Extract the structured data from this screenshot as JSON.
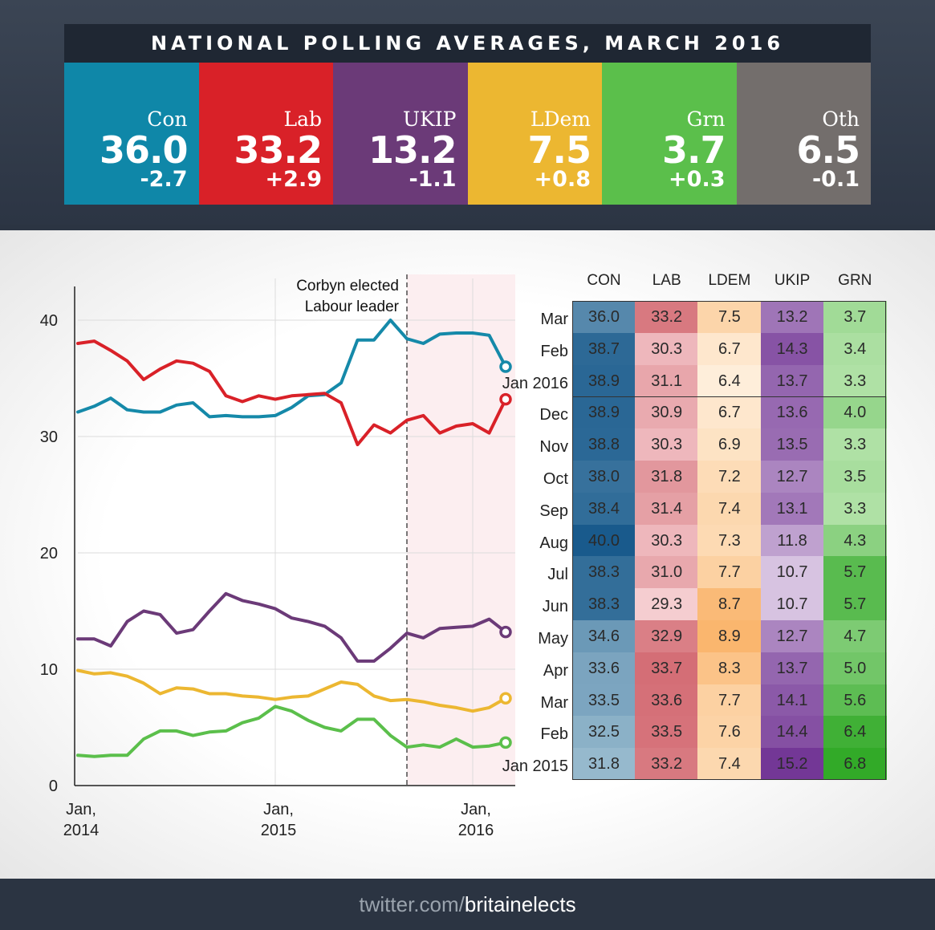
{
  "title": "NATIONAL POLLING AVERAGES, MARCH 2016",
  "cards": [
    {
      "name": "Con",
      "value": "36.0",
      "change": "-2.7",
      "color": "#0f87a8"
    },
    {
      "name": "Lab",
      "value": "33.2",
      "change": "+2.9",
      "color": "#d92128"
    },
    {
      "name": "UKIP",
      "value": "13.2",
      "change": "-1.1",
      "color": "#6b3a78"
    },
    {
      "name": "LDem",
      "value": "7.5",
      "change": "+0.8",
      "color": "#ecb731"
    },
    {
      "name": "Grn",
      "value": "3.7",
      "change": "+0.3",
      "color": "#5bbf4b"
    },
    {
      "name": "Oth",
      "value": "6.5",
      "change": "-0.1",
      "color": "#736e6c"
    }
  ],
  "chart_data": [
    {
      "type": "line",
      "x_ticks": [
        "Jan, 2014",
        "Jan, 2015",
        "Jan, 2016"
      ],
      "ylim": [
        0,
        42
      ],
      "y_ticks": [
        0,
        10,
        20,
        30,
        40
      ],
      "x_months_start": "2014-01",
      "grid": true,
      "annotation": {
        "text_line1": "Corbyn elected",
        "text_line2": "Labour leader",
        "x": "2015-09"
      },
      "series": [
        {
          "name": "",
          "color": "#1589a9",
          "values": [
            32.1,
            32.6,
            33.3,
            32.3,
            32.1,
            32.1,
            32.7,
            32.9,
            31.7,
            31.8,
            31.7,
            31.7,
            31.8,
            32.5,
            33.5,
            33.6,
            34.6,
            38.3,
            38.3,
            40.0,
            38.4,
            38.0,
            38.8,
            38.9,
            38.9,
            38.7,
            36.0
          ]
        },
        {
          "name": "",
          "color": "#d92128",
          "values": [
            38.0,
            38.2,
            37.4,
            36.5,
            34.9,
            35.8,
            36.5,
            36.3,
            35.6,
            33.5,
            33.0,
            33.5,
            33.2,
            33.5,
            33.6,
            33.7,
            32.9,
            29.3,
            31.0,
            30.3,
            31.4,
            31.8,
            30.3,
            30.9,
            31.1,
            30.3,
            33.2
          ]
        },
        {
          "name": "",
          "color": "#6b3a78",
          "values": [
            12.6,
            12.6,
            12.0,
            14.1,
            15.0,
            14.7,
            13.1,
            13.4,
            15.0,
            16.5,
            15.9,
            15.6,
            15.2,
            14.4,
            14.1,
            13.7,
            12.7,
            10.7,
            10.7,
            11.8,
            13.1,
            12.7,
            13.5,
            13.6,
            13.7,
            14.3,
            13.2
          ]
        },
        {
          "name": "",
          "color": "#ecb731",
          "values": [
            9.9,
            9.6,
            9.7,
            9.4,
            8.8,
            7.9,
            8.4,
            8.3,
            7.9,
            7.9,
            7.7,
            7.6,
            7.4,
            7.6,
            7.7,
            8.3,
            8.9,
            8.7,
            7.7,
            7.3,
            7.4,
            7.2,
            6.9,
            6.7,
            6.4,
            6.7,
            7.5
          ]
        },
        {
          "name": "",
          "color": "#5bbf4b",
          "values": [
            2.6,
            2.5,
            2.6,
            2.6,
            4.0,
            4.7,
            4.7,
            4.3,
            4.6,
            4.7,
            5.4,
            5.8,
            6.8,
            6.4,
            5.6,
            5.0,
            4.7,
            5.7,
            5.7,
            4.3,
            3.3,
            3.5,
            3.3,
            4.0,
            3.3,
            3.4,
            3.7
          ]
        }
      ]
    },
    {
      "type": "table",
      "columns": [
        "CON",
        "LAB",
        "LDEM",
        "UKIP",
        "GRN"
      ],
      "rows": [
        {
          "label": "Mar",
          "values": [
            "36.0",
            "33.2",
            "7.5",
            "13.2",
            "3.7"
          ]
        },
        {
          "label": "Feb",
          "values": [
            "38.7",
            "30.3",
            "6.7",
            "14.3",
            "3.4"
          ]
        },
        {
          "label": "Jan 2016",
          "values": [
            "38.9",
            "31.1",
            "6.4",
            "13.7",
            "3.3"
          ]
        },
        {
          "label": "Dec",
          "values": [
            "38.9",
            "30.9",
            "6.7",
            "13.6",
            "4.0"
          ]
        },
        {
          "label": "Nov",
          "values": [
            "38.8",
            "30.3",
            "6.9",
            "13.5",
            "3.3"
          ]
        },
        {
          "label": "Oct",
          "values": [
            "38.0",
            "31.8",
            "7.2",
            "12.7",
            "3.5"
          ]
        },
        {
          "label": "Sep",
          "values": [
            "38.4",
            "31.4",
            "7.4",
            "13.1",
            "3.3"
          ]
        },
        {
          "label": "Aug",
          "values": [
            "40.0",
            "30.3",
            "7.3",
            "11.8",
            "4.3"
          ]
        },
        {
          "label": "Jul",
          "values": [
            "38.3",
            "31.0",
            "7.7",
            "10.7",
            "5.7"
          ]
        },
        {
          "label": "Jun",
          "values": [
            "38.3",
            "29.3",
            "8.7",
            "10.7",
            "5.7"
          ]
        },
        {
          "label": "May",
          "values": [
            "34.6",
            "32.9",
            "8.9",
            "12.7",
            "4.7"
          ]
        },
        {
          "label": "Apr",
          "values": [
            "33.6",
            "33.7",
            "8.3",
            "13.7",
            "5.0"
          ]
        },
        {
          "label": "Mar",
          "values": [
            "33.5",
            "33.6",
            "7.7",
            "14.1",
            "5.6"
          ]
        },
        {
          "label": "Feb",
          "values": [
            "32.5",
            "33.5",
            "7.6",
            "14.4",
            "6.4"
          ]
        },
        {
          "label": "Jan 2015",
          "values": [
            "31.8",
            "33.2",
            "7.4",
            "15.2",
            "6.8"
          ]
        }
      ]
    }
  ],
  "footer": {
    "prefix": "twitter.com/",
    "handle": "britainelects"
  }
}
